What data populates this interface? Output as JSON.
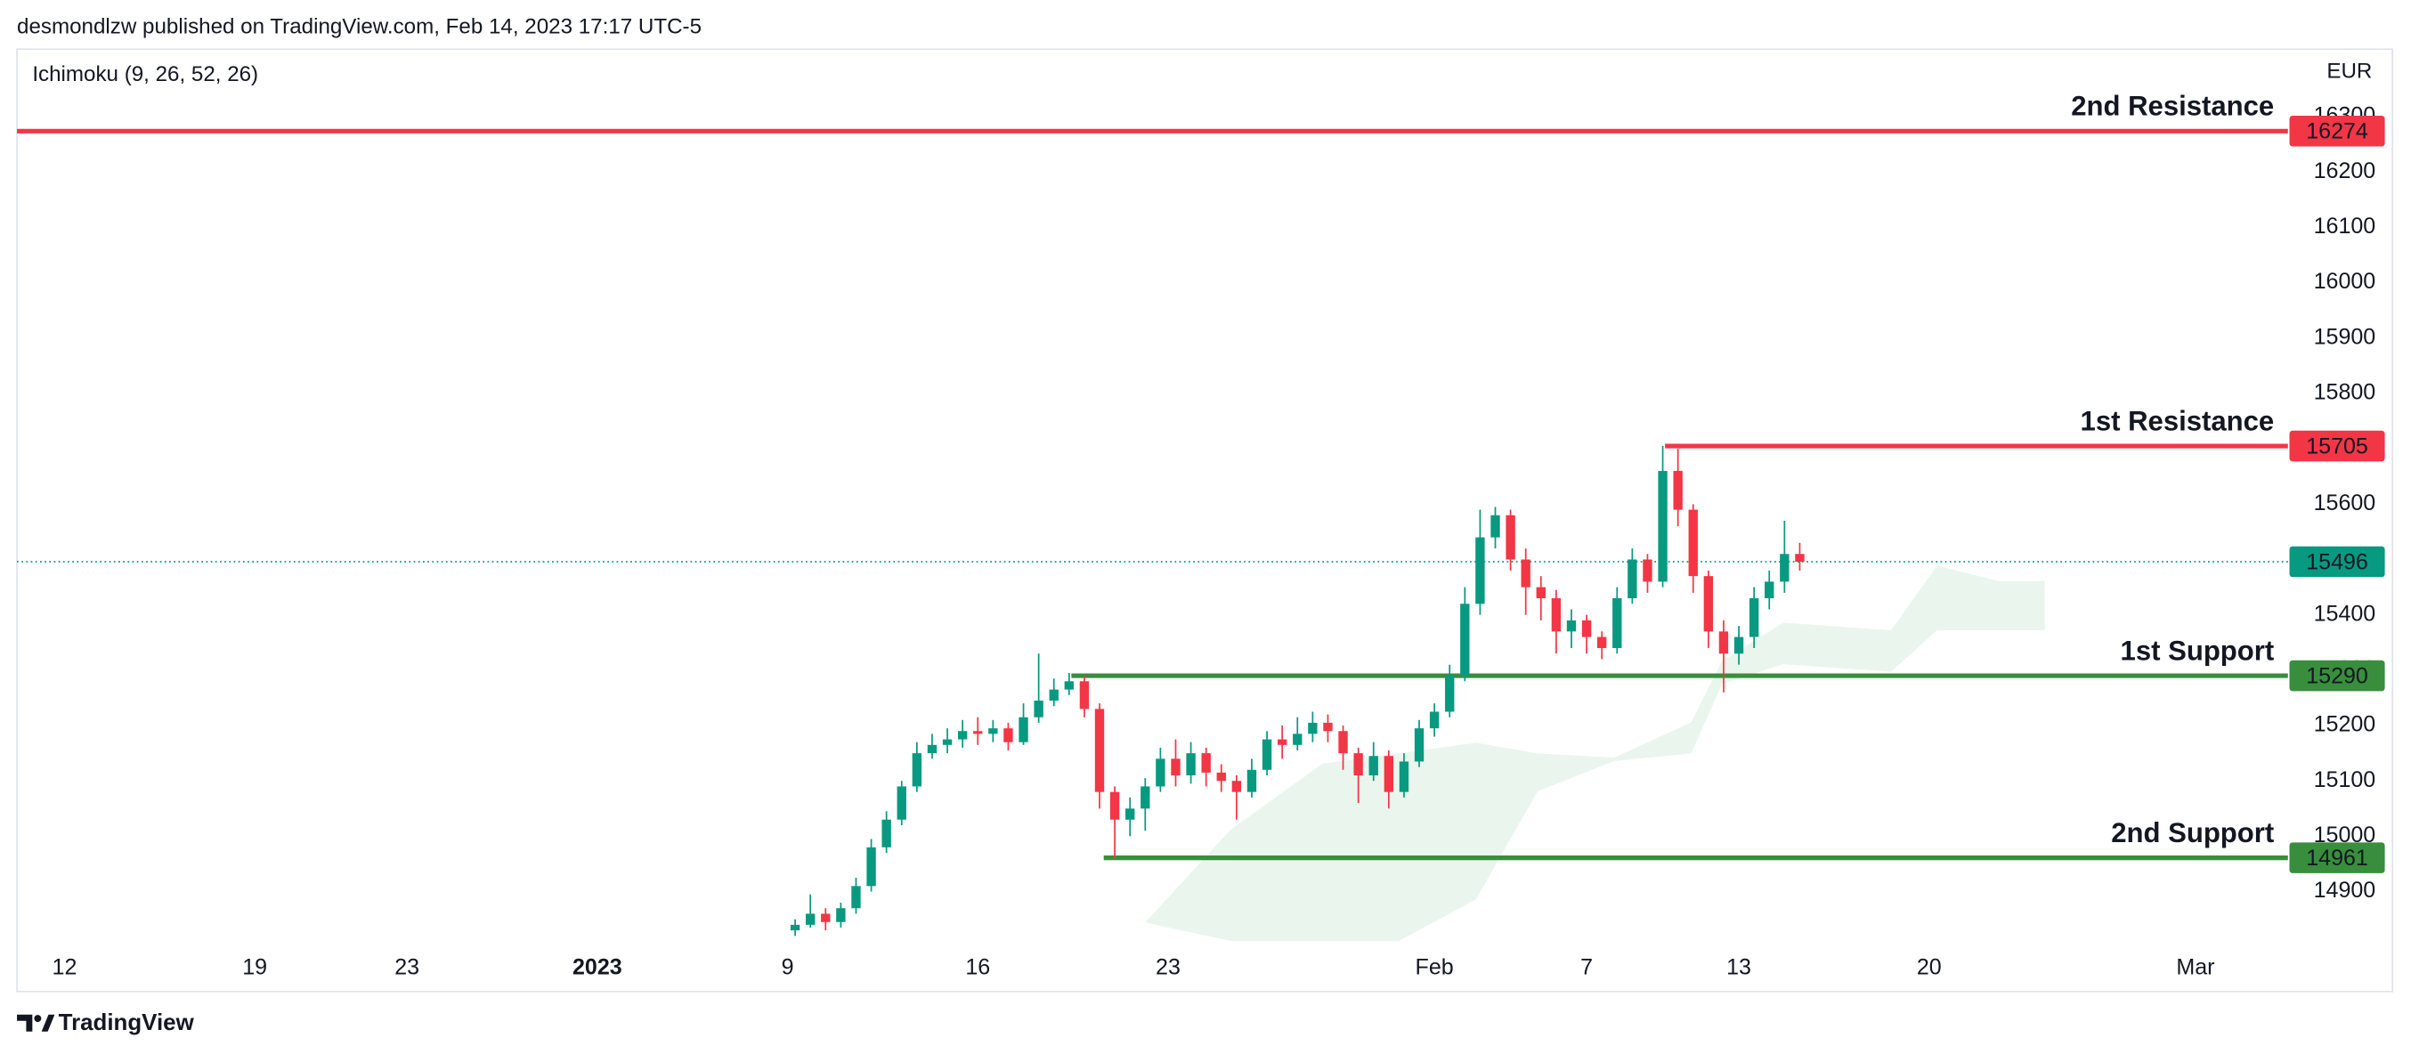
{
  "header": {
    "text": "desmondlzw published on TradingView.com, Feb 14, 2023 17:17 UTC-5"
  },
  "footer": {
    "brand": "TradingView"
  },
  "chart_data": {
    "type": "candlestick",
    "indicator": "Ichimoku (9, 26, 52, 26)",
    "currency": "EUR",
    "up_color": "#089981",
    "down_color": "#f23645",
    "xlim": [
      -1.25,
      58.43
    ],
    "xticks": [
      {
        "value": 0,
        "label": "12"
      },
      {
        "value": 5,
        "label": "19"
      },
      {
        "value": 9,
        "label": "23"
      },
      {
        "value": 14,
        "label": "2023"
      },
      {
        "value": 19,
        "label": "9"
      },
      {
        "value": 24,
        "label": "16"
      },
      {
        "value": 29,
        "label": "23"
      },
      {
        "value": 36,
        "label": "Feb"
      },
      {
        "value": 40,
        "label": "7"
      },
      {
        "value": 44,
        "label": "13"
      },
      {
        "value": 49,
        "label": "20"
      },
      {
        "value": 56,
        "label": "Mar"
      }
    ],
    "ylim": [
      14811,
      16422
    ],
    "yticks": [
      14900,
      15000,
      15100,
      15200,
      15300,
      15400,
      15500,
      15600,
      15700,
      15800,
      15900,
      16000,
      16100,
      16200,
      16300
    ],
    "x": [
      19.2,
      19.6,
      20.0,
      20.4,
      20.8,
      21.2,
      21.6,
      22.0,
      22.4,
      22.8,
      23.2,
      23.6,
      24.0,
      24.4,
      24.8,
      25.2,
      25.6,
      26.0,
      26.4,
      26.8,
      27.2,
      27.6,
      28.0,
      28.4,
      28.8,
      29.2,
      29.6,
      30.0,
      30.4,
      30.8,
      31.2,
      31.6,
      32.0,
      32.4,
      32.8,
      33.2,
      33.6,
      34.0,
      34.4,
      34.8,
      35.2,
      35.6,
      36.0,
      36.4,
      36.8,
      37.2,
      37.6,
      38.0,
      38.4,
      38.8,
      39.2,
      39.6,
      40.0,
      40.4,
      40.8,
      41.2,
      41.6,
      42.0,
      42.4,
      42.8,
      43.2,
      43.6,
      44.0,
      44.4,
      44.8,
      45.2,
      45.6
    ],
    "open": [
      14830,
      14840,
      14860,
      14845,
      14870,
      14910,
      14980,
      15030,
      15090,
      15150,
      15165,
      15175,
      15190,
      15185,
      15195,
      15170,
      15215,
      15245,
      15265,
      15280,
      15230,
      15080,
      15030,
      15050,
      15090,
      15140,
      15110,
      15150,
      15115,
      15100,
      15080,
      15120,
      15175,
      15165,
      15185,
      15205,
      15190,
      15150,
      15110,
      15145,
      15080,
      15135,
      15195,
      15225,
      15290,
      15420,
      15540,
      15580,
      15500,
      15450,
      15430,
      15370,
      15390,
      15360,
      15340,
      15430,
      15500,
      15460,
      15660,
      15590,
      15470,
      15370,
      15330,
      15360,
      15430,
      15460,
      15510
    ],
    "high": [
      14850,
      14895,
      14870,
      14880,
      14925,
      14995,
      15045,
      15100,
      15170,
      15185,
      15195,
      15210,
      15215,
      15210,
      15205,
      15240,
      15330,
      15285,
      15295,
      15290,
      15240,
      15090,
      15070,
      15105,
      15160,
      15175,
      15170,
      15160,
      15130,
      15110,
      15140,
      15190,
      15200,
      15215,
      15225,
      15220,
      15200,
      15160,
      15170,
      15155,
      15150,
      15210,
      15240,
      15310,
      15450,
      15590,
      15595,
      15590,
      15520,
      15470,
      15445,
      15410,
      15400,
      15370,
      15450,
      15520,
      15510,
      15705,
      15700,
      15600,
      15480,
      15390,
      15380,
      15450,
      15480,
      15570,
      15530
    ],
    "low": [
      14820,
      14835,
      14830,
      14835,
      14860,
      14900,
      14970,
      15020,
      15080,
      15140,
      15150,
      15160,
      15165,
      15170,
      15155,
      15165,
      15205,
      15235,
      15255,
      15215,
      15050,
      14960,
      15000,
      15010,
      15080,
      15090,
      15095,
      15090,
      15080,
      15030,
      15070,
      15110,
      15140,
      15155,
      15170,
      15170,
      15120,
      15060,
      15100,
      15050,
      15070,
      15125,
      15180,
      15215,
      15280,
      15400,
      15520,
      15480,
      15400,
      15390,
      15330,
      15340,
      15330,
      15320,
      15330,
      15420,
      15440,
      15450,
      15560,
      15440,
      15340,
      15260,
      15310,
      15340,
      15410,
      15440,
      15480
    ],
    "close": [
      14840,
      14860,
      14845,
      14870,
      14910,
      14980,
      15030,
      15090,
      15150,
      15165,
      15175,
      15190,
      15185,
      15195,
      15170,
      15215,
      15245,
      15265,
      15280,
      15230,
      15080,
      15030,
      15050,
      15090,
      15140,
      15110,
      15150,
      15115,
      15100,
      15080,
      15120,
      15175,
      15165,
      15185,
      15205,
      15190,
      15150,
      15110,
      15145,
      15080,
      15135,
      15195,
      15225,
      15290,
      15420,
      15540,
      15580,
      15500,
      15450,
      15430,
      15370,
      15390,
      15360,
      15340,
      15430,
      15500,
      15460,
      15660,
      15590,
      15470,
      15370,
      15330,
      15360,
      15430,
      15460,
      15510,
      15496
    ],
    "cloud": {
      "color": "#e6f4ea",
      "x": [
        28.4,
        30.63,
        33.05,
        35.07,
        37.09,
        38.71,
        40.73,
        42.75,
        43.56,
        45.17,
        48.0,
        49.21,
        50.83,
        52.04
      ],
      "upper": [
        14844,
        15011,
        15131,
        15150,
        15169,
        15150,
        15142,
        15206,
        15317,
        15386,
        15372,
        15489,
        15461,
        15461
      ],
      "lower": [
        14844,
        14811,
        14811,
        14811,
        14886,
        15081,
        15136,
        15150,
        15275,
        15311,
        15297,
        15372,
        15372,
        15372
      ]
    },
    "last_price": {
      "value": 15496,
      "color": "#089981"
    },
    "levels": [
      {
        "name": "2nd Resistance",
        "value": 16274,
        "color": "#f23645",
        "start": -1.25
      },
      {
        "name": "1st Resistance",
        "value": 15705,
        "color": "#f23645",
        "start": 42.06
      },
      {
        "name": "1st Support",
        "value": 15290,
        "color": "#388e3c",
        "start": 26.46
      },
      {
        "name": "2nd Support",
        "value": 14961,
        "color": "#388e3c",
        "start": 27.31
      }
    ]
  }
}
